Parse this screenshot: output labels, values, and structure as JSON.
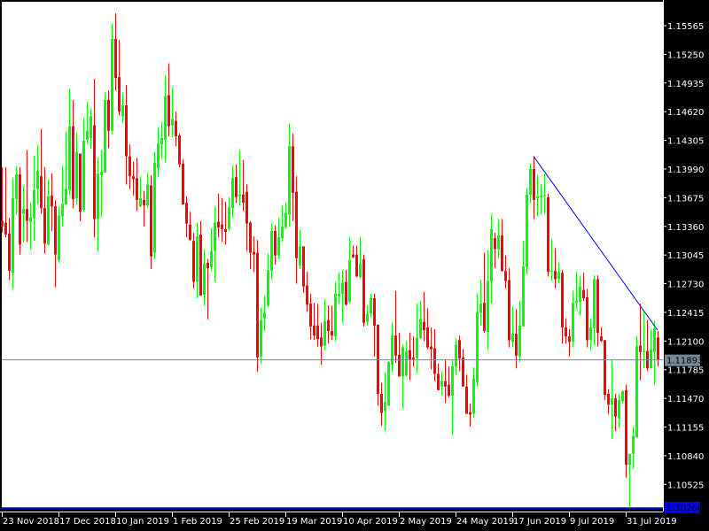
{
  "chart_data": {
    "type": "candlestick",
    "title": "",
    "colors": {
      "bull": "#00ff00",
      "bear": "#ff0000",
      "background": "#ffffff",
      "frame": "#000000",
      "bid_line": "#778899",
      "low_line": "#0000ff",
      "trendline": "#0000ff"
    },
    "price_ticks": [
      "1.15565",
      "1.15250",
      "1.14935",
      "1.14620",
      "1.14305",
      "1.13990",
      "1.13675",
      "1.13360",
      "1.13045",
      "1.12730",
      "1.12415",
      "1.12100",
      "1.11785",
      "1.11470",
      "1.11155",
      "1.10840",
      "1.10525"
    ],
    "y_range": [
      1.10266,
      1.15565
    ],
    "date_labels": [
      {
        "bar": 0,
        "label": "23 Nov 2018"
      },
      {
        "bar": 16,
        "label": "17 Dec 2018"
      },
      {
        "bar": 32,
        "label": "10 Jan 2019"
      },
      {
        "bar": 48,
        "label": "1 Feb 2019"
      },
      {
        "bar": 64,
        "label": "25 Feb 2019"
      },
      {
        "bar": 80,
        "label": "19 Mar 2019"
      },
      {
        "bar": 96,
        "label": "10 Apr 2019"
      },
      {
        "bar": 112,
        "label": "2 May 2019"
      },
      {
        "bar": 128,
        "label": "24 May 2019"
      },
      {
        "bar": 144,
        "label": "17 Jun 2019"
      },
      {
        "bar": 160,
        "label": "9 Jul 2019"
      },
      {
        "bar": 176,
        "label": "31 Jul 2019"
      }
    ],
    "bid": {
      "price": 1.11893,
      "label": "1.11893"
    },
    "low_line": {
      "price": 1.10266,
      "label": "1.10266"
    },
    "trendline": {
      "from_bar": 150,
      "from_price": 1.1413,
      "to_bar": 185,
      "to_price": 1.1222
    },
    "ohlc_fields": [
      "open",
      "high",
      "low",
      "close"
    ],
    "ohlc": [
      [
        1.1342,
        1.1401,
        1.1329,
        1.1336
      ],
      [
        1.134,
        1.1401,
        1.1324,
        1.1327
      ],
      [
        1.1328,
        1.1345,
        1.1277,
        1.1287
      ],
      [
        1.1285,
        1.1389,
        1.1267,
        1.1367
      ],
      [
        1.1366,
        1.1402,
        1.1349,
        1.1393
      ],
      [
        1.1393,
        1.1401,
        1.1305,
        1.1316
      ],
      [
        1.135,
        1.1381,
        1.1319,
        1.1355
      ],
      [
        1.1355,
        1.142,
        1.1319,
        1.1342
      ],
      [
        1.1341,
        1.1362,
        1.1311,
        1.1346
      ],
      [
        1.1345,
        1.1413,
        1.132,
        1.1376
      ],
      [
        1.1377,
        1.1425,
        1.136,
        1.1397
      ],
      [
        1.1391,
        1.1443,
        1.135,
        1.1356
      ],
      [
        1.1356,
        1.1401,
        1.1306,
        1.1317
      ],
      [
        1.1316,
        1.1388,
        1.1315,
        1.1369
      ],
      [
        1.137,
        1.1394,
        1.1331,
        1.1358
      ],
      [
        1.1358,
        1.1365,
        1.1269,
        1.1305
      ],
      [
        1.1299,
        1.1358,
        1.1296,
        1.1348
      ],
      [
        1.1347,
        1.1403,
        1.1336,
        1.1361
      ],
      [
        1.136,
        1.144,
        1.136,
        1.1377
      ],
      [
        1.1376,
        1.1487,
        1.137,
        1.1446
      ],
      [
        1.1446,
        1.1475,
        1.1356,
        1.1366
      ],
      [
        1.1367,
        1.1439,
        1.136,
        1.1418
      ],
      [
        1.1416,
        1.1416,
        1.1342,
        1.1352
      ],
      [
        1.1354,
        1.1455,
        1.1352,
        1.143
      ],
      [
        1.1431,
        1.1473,
        1.1427,
        1.1441
      ],
      [
        1.1433,
        1.1466,
        1.1421,
        1.1457
      ],
      [
        1.1447,
        1.1498,
        1.1324,
        1.1344
      ],
      [
        1.1344,
        1.1412,
        1.1309,
        1.1394
      ],
      [
        1.1392,
        1.142,
        1.1346,
        1.1396
      ],
      [
        1.1395,
        1.1483,
        1.1395,
        1.1475
      ],
      [
        1.1475,
        1.1485,
        1.1422,
        1.1441
      ],
      [
        1.1441,
        1.1559,
        1.1437,
        1.1542
      ],
      [
        1.1542,
        1.157,
        1.1485,
        1.1499
      ],
      [
        1.15,
        1.1541,
        1.1458,
        1.1462
      ],
      [
        1.1457,
        1.1483,
        1.145,
        1.1469
      ],
      [
        1.1469,
        1.1491,
        1.1382,
        1.1413
      ],
      [
        1.1413,
        1.1426,
        1.1377,
        1.1391
      ],
      [
        1.1391,
        1.1407,
        1.137,
        1.1388
      ],
      [
        1.1389,
        1.1411,
        1.1353,
        1.1365
      ],
      [
        1.1358,
        1.1391,
        1.1357,
        1.1367
      ],
      [
        1.1365,
        1.1375,
        1.1336,
        1.1359
      ],
      [
        1.1359,
        1.1395,
        1.1357,
        1.1382
      ],
      [
        1.1381,
        1.1392,
        1.1289,
        1.1303
      ],
      [
        1.1307,
        1.1418,
        1.13,
        1.1406
      ],
      [
        1.14,
        1.1444,
        1.139,
        1.1427
      ],
      [
        1.1426,
        1.1451,
        1.1411,
        1.1433
      ],
      [
        1.1431,
        1.1502,
        1.1406,
        1.1479
      ],
      [
        1.148,
        1.1515,
        1.1435,
        1.1446
      ],
      [
        1.1447,
        1.1489,
        1.1434,
        1.1454
      ],
      [
        1.1452,
        1.1462,
        1.1424,
        1.1435
      ],
      [
        1.1436,
        1.1438,
        1.1401,
        1.1404
      ],
      [
        1.1405,
        1.141,
        1.136,
        1.136
      ],
      [
        1.1362,
        1.1369,
        1.1324,
        1.1339
      ],
      [
        1.1338,
        1.1352,
        1.132,
        1.1321
      ],
      [
        1.132,
        1.1329,
        1.1268,
        1.1275
      ],
      [
        1.1275,
        1.134,
        1.1257,
        1.1325
      ],
      [
        1.1327,
        1.1342,
        1.126,
        1.126
      ],
      [
        1.1261,
        1.1311,
        1.1249,
        1.1295
      ],
      [
        1.1296,
        1.13,
        1.1234,
        1.129
      ],
      [
        1.1291,
        1.1334,
        1.1287,
        1.1309
      ],
      [
        1.1309,
        1.1358,
        1.1275,
        1.134
      ],
      [
        1.1341,
        1.1372,
        1.1324,
        1.1335
      ],
      [
        1.1338,
        1.1367,
        1.1319,
        1.1333
      ],
      [
        1.1333,
        1.1363,
        1.1316,
        1.133
      ],
      [
        1.1333,
        1.1368,
        1.1331,
        1.1357
      ],
      [
        1.1356,
        1.1403,
        1.1345,
        1.1389
      ],
      [
        1.139,
        1.1404,
        1.1362,
        1.1368
      ],
      [
        1.1369,
        1.142,
        1.1359,
        1.1371
      ],
      [
        1.1371,
        1.1409,
        1.1353,
        1.1362
      ],
      [
        1.1374,
        1.1382,
        1.1309,
        1.1339
      ],
      [
        1.134,
        1.1342,
        1.1289,
        1.1307
      ],
      [
        1.1308,
        1.1325,
        1.1286,
        1.1305
      ],
      [
        1.1307,
        1.1321,
        1.1176,
        1.1192
      ],
      [
        1.1193,
        1.1247,
        1.1185,
        1.1233
      ],
      [
        1.1235,
        1.126,
        1.1221,
        1.1241
      ],
      [
        1.1249,
        1.1306,
        1.1247,
        1.1288
      ],
      [
        1.1287,
        1.1339,
        1.1278,
        1.1331
      ],
      [
        1.1331,
        1.1337,
        1.1294,
        1.1304
      ],
      [
        1.1304,
        1.1345,
        1.13,
        1.1324
      ],
      [
        1.1323,
        1.1359,
        1.1319,
        1.1336
      ],
      [
        1.1335,
        1.1362,
        1.1333,
        1.1351
      ],
      [
        1.1349,
        1.1449,
        1.1336,
        1.1424
      ],
      [
        1.1424,
        1.1438,
        1.1342,
        1.1373
      ],
      [
        1.1374,
        1.1391,
        1.1273,
        1.1301
      ],
      [
        1.1293,
        1.1332,
        1.1289,
        1.1314
      ],
      [
        1.1314,
        1.1314,
        1.1263,
        1.127
      ],
      [
        1.1271,
        1.1286,
        1.1242,
        1.125
      ],
      [
        1.1251,
        1.1262,
        1.1212,
        1.1226
      ],
      [
        1.1227,
        1.1252,
        1.1211,
        1.1216
      ],
      [
        1.1227,
        1.1251,
        1.1204,
        1.1212
      ],
      [
        1.1214,
        1.123,
        1.1184,
        1.1204
      ],
      [
        1.1205,
        1.1256,
        1.12,
        1.1232
      ],
      [
        1.1233,
        1.1249,
        1.1207,
        1.1221
      ],
      [
        1.1221,
        1.1249,
        1.1211,
        1.1216
      ],
      [
        1.1215,
        1.1275,
        1.121,
        1.1262
      ],
      [
        1.1259,
        1.1285,
        1.1251,
        1.1262
      ],
      [
        1.1262,
        1.1288,
        1.123,
        1.1274
      ],
      [
        1.1275,
        1.1288,
        1.1249,
        1.125
      ],
      [
        1.1253,
        1.1324,
        1.1251,
        1.1299
      ],
      [
        1.1305,
        1.1315,
        1.1301,
        1.1302
      ],
      [
        1.1305,
        1.1315,
        1.128,
        1.1281
      ],
      [
        1.128,
        1.1324,
        1.1279,
        1.1295
      ],
      [
        1.13,
        1.1305,
        1.1226,
        1.123
      ],
      [
        1.1231,
        1.1249,
        1.1227,
        1.124
      ],
      [
        1.124,
        1.1262,
        1.1236,
        1.1257
      ],
      [
        1.1257,
        1.1262,
        1.1193,
        1.1227
      ],
      [
        1.1228,
        1.1228,
        1.1139,
        1.1152
      ],
      [
        1.1152,
        1.1164,
        1.1117,
        1.1131
      ],
      [
        1.1133,
        1.1175,
        1.1111,
        1.1143
      ],
      [
        1.1139,
        1.1188,
        1.1139,
        1.1187
      ],
      [
        1.1184,
        1.123,
        1.1176,
        1.1216
      ],
      [
        1.1216,
        1.1265,
        1.1186,
        1.1194
      ],
      [
        1.1195,
        1.1219,
        1.1171,
        1.1171
      ],
      [
        1.1171,
        1.1206,
        1.1136,
        1.1203
      ],
      [
        1.1172,
        1.121,
        1.1171,
        1.1199
      ],
      [
        1.12,
        1.1219,
        1.1167,
        1.119
      ],
      [
        1.1192,
        1.1215,
        1.1182,
        1.119
      ],
      [
        1.1191,
        1.1251,
        1.1174,
        1.1214
      ],
      [
        1.1213,
        1.1254,
        1.1213,
        1.1234
      ],
      [
        1.1231,
        1.1264,
        1.121,
        1.1222
      ],
      [
        1.1225,
        1.1246,
        1.1201,
        1.1203
      ],
      [
        1.1204,
        1.1225,
        1.1179,
        1.1201
      ],
      [
        1.1202,
        1.1223,
        1.1166,
        1.1174
      ],
      [
        1.1174,
        1.1185,
        1.1156,
        1.1156
      ],
      [
        1.116,
        1.1176,
        1.115,
        1.1166
      ],
      [
        1.1166,
        1.1189,
        1.1142,
        1.116
      ],
      [
        1.1162,
        1.1182,
        1.1148,
        1.115
      ],
      [
        1.115,
        1.1189,
        1.1107,
        1.1182
      ],
      [
        1.1182,
        1.1213,
        1.1172,
        1.1206
      ],
      [
        1.1211,
        1.1216,
        1.1177,
        1.1191
      ],
      [
        1.1192,
        1.1201,
        1.116,
        1.116
      ],
      [
        1.116,
        1.1173,
        1.113,
        1.113
      ],
      [
        1.1132,
        1.1141,
        1.1116,
        1.1129
      ],
      [
        1.113,
        1.1181,
        1.1126,
        1.1169
      ],
      [
        1.1165,
        1.1262,
        1.116,
        1.1242
      ],
      [
        1.1241,
        1.1277,
        1.1227,
        1.1251
      ],
      [
        1.1252,
        1.1307,
        1.1219,
        1.1221
      ],
      [
        1.122,
        1.131,
        1.1201,
        1.1276
      ],
      [
        1.1275,
        1.1349,
        1.1251,
        1.1333
      ],
      [
        1.1323,
        1.1329,
        1.129,
        1.1311
      ],
      [
        1.1311,
        1.1344,
        1.1301,
        1.1326
      ],
      [
        1.1326,
        1.1344,
        1.1286,
        1.1287
      ],
      [
        1.1287,
        1.1304,
        1.1268,
        1.1276
      ],
      [
        1.1277,
        1.129,
        1.1203,
        1.1211
      ],
      [
        1.1209,
        1.1248,
        1.1203,
        1.1218
      ],
      [
        1.1218,
        1.1245,
        1.118,
        1.1194
      ],
      [
        1.1193,
        1.1254,
        1.1187,
        1.1227
      ],
      [
        1.1226,
        1.132,
        1.1226,
        1.1292
      ],
      [
        1.1291,
        1.1378,
        1.1283,
        1.1371
      ],
      [
        1.1371,
        1.1405,
        1.1361,
        1.1399
      ],
      [
        1.1399,
        1.1413,
        1.1344,
        1.1365
      ],
      [
        1.1367,
        1.1392,
        1.1347,
        1.1369
      ],
      [
        1.1368,
        1.1382,
        1.1349,
        1.137
      ],
      [
        1.1369,
        1.1394,
        1.135,
        1.137
      ],
      [
        1.1368,
        1.1372,
        1.1281,
        1.1286
      ],
      [
        1.1286,
        1.1322,
        1.1276,
        1.1287
      ],
      [
        1.1287,
        1.1312,
        1.1268,
        1.1278
      ],
      [
        1.1278,
        1.1296,
        1.1273,
        1.1286
      ],
      [
        1.1285,
        1.1288,
        1.1207,
        1.1225
      ],
      [
        1.1225,
        1.1235,
        1.1207,
        1.1215
      ],
      [
        1.1215,
        1.1223,
        1.1193,
        1.1209
      ],
      [
        1.1209,
        1.1265,
        1.1203,
        1.1252
      ],
      [
        1.1252,
        1.1286,
        1.1245,
        1.1254
      ],
      [
        1.1253,
        1.1281,
        1.1238,
        1.127
      ],
      [
        1.1266,
        1.1285,
        1.1254,
        1.1257
      ],
      [
        1.1258,
        1.1267,
        1.1203,
        1.1211
      ],
      [
        1.1211,
        1.1235,
        1.12,
        1.1225
      ],
      [
        1.1224,
        1.1282,
        1.1205,
        1.1278
      ],
      [
        1.1278,
        1.1282,
        1.1204,
        1.1219
      ],
      [
        1.1215,
        1.1225,
        1.1209,
        1.121
      ],
      [
        1.1211,
        1.1211,
        1.1145,
        1.1151
      ],
      [
        1.1152,
        1.1157,
        1.113,
        1.114
      ],
      [
        1.114,
        1.1189,
        1.1102,
        1.1147
      ],
      [
        1.1147,
        1.1152,
        1.1111,
        1.1127
      ],
      [
        1.1125,
        1.1152,
        1.1115,
        1.1145
      ],
      [
        1.1144,
        1.1156,
        1.1141,
        1.1155
      ],
      [
        1.1156,
        1.1162,
        1.106,
        1.1074
      ],
      [
        1.1074,
        1.1086,
        1.1028,
        1.1086
      ],
      [
        1.1086,
        1.1116,
        1.107,
        1.1106
      ],
      [
        1.1104,
        1.1215,
        1.1104,
        1.1204
      ],
      [
        1.1205,
        1.1251,
        1.1167,
        1.1198
      ],
      [
        1.1198,
        1.1242,
        1.118,
        1.1199
      ],
      [
        1.1199,
        1.1233,
        1.1177,
        1.118
      ],
      [
        1.118,
        1.1223,
        1.118,
        1.1201
      ],
      [
        1.1198,
        1.1232,
        1.1162,
        1.1224
      ],
      [
        1.1214,
        1.1221,
        1.1182,
        1.119
      ]
    ]
  }
}
